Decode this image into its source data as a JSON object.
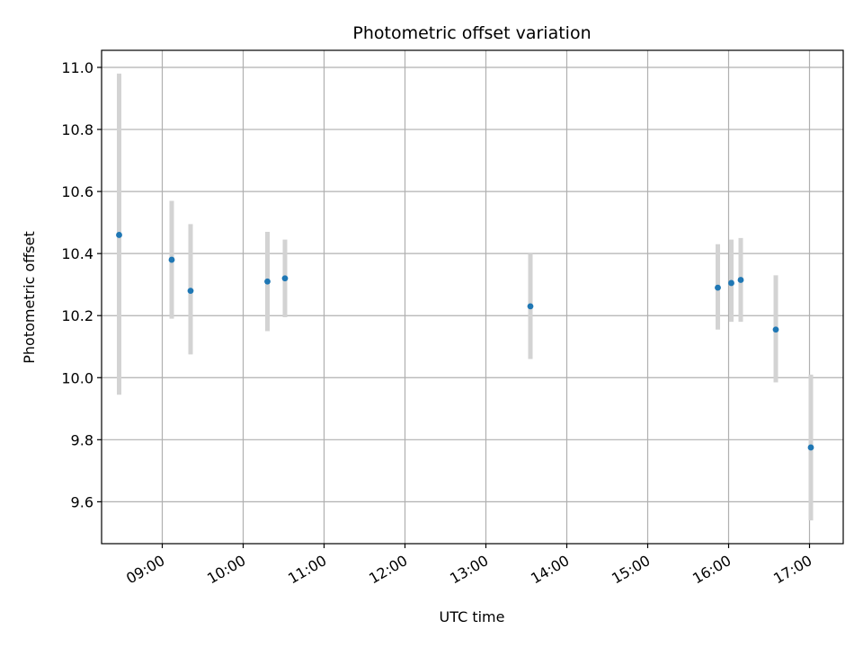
{
  "chart_data": {
    "type": "scatter",
    "title": "Photometric offset variation",
    "xlabel": "UTC time",
    "ylabel": "Photometric offset",
    "x_axis": "time",
    "xlim": [
      "08:15",
      "17:25"
    ],
    "ylim": [
      9.465,
      11.055
    ],
    "grid": true,
    "x_ticks": [
      "09:00",
      "10:00",
      "11:00",
      "12:00",
      "13:00",
      "14:00",
      "15:00",
      "16:00",
      "17:00"
    ],
    "y_ticks": [
      9.6,
      9.8,
      10.0,
      10.2,
      10.4,
      10.6,
      10.8,
      11.0
    ],
    "y_tick_labels": [
      "9.6",
      "9.8",
      "10.0",
      "10.2",
      "10.4",
      "10.6",
      "10.8",
      "11.0"
    ],
    "points": [
      {
        "x": "08:28",
        "y": 10.46,
        "yerr_low": 9.945,
        "yerr_high": 10.98
      },
      {
        "x": "09:07",
        "y": 10.38,
        "yerr_low": 10.19,
        "yerr_high": 10.57
      },
      {
        "x": "09:21",
        "y": 10.28,
        "yerr_low": 10.075,
        "yerr_high": 10.495
      },
      {
        "x": "10:18",
        "y": 10.31,
        "yerr_low": 10.15,
        "yerr_high": 10.47
      },
      {
        "x": "10:31",
        "y": 10.32,
        "yerr_low": 10.195,
        "yerr_high": 10.445
      },
      {
        "x": "13:33",
        "y": 10.23,
        "yerr_low": 10.06,
        "yerr_high": 10.4
      },
      {
        "x": "15:52",
        "y": 10.29,
        "yerr_low": 10.155,
        "yerr_high": 10.43
      },
      {
        "x": "16:02",
        "y": 10.305,
        "yerr_low": 10.18,
        "yerr_high": 10.445
      },
      {
        "x": "16:09",
        "y": 10.315,
        "yerr_low": 10.18,
        "yerr_high": 10.45
      },
      {
        "x": "16:35",
        "y": 10.155,
        "yerr_low": 9.985,
        "yerr_high": 10.33
      },
      {
        "x": "17:01",
        "y": 9.775,
        "yerr_low": 9.54,
        "yerr_high": 10.01
      }
    ],
    "colors": {
      "point": "#1f77b4",
      "errorbar": "#d3d3d3",
      "grid": "#b0b0b0",
      "axes": "#000000"
    }
  }
}
